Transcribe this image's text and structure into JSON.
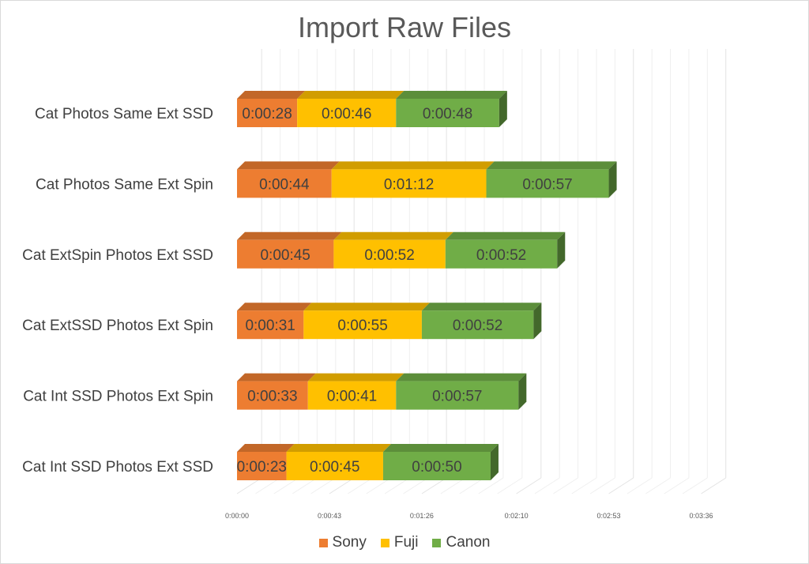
{
  "chart_data": {
    "type": "bar",
    "orientation": "horizontal",
    "stacked": true,
    "style": "3d",
    "title": "Import Raw Files",
    "categories": [
      "Cat Photos Same Ext SSD",
      "Cat Photos Same Ext Spin",
      "Cat ExtSpin Photos Ext SSD",
      "Cat ExtSSD Photos Ext Spin",
      "Cat Int SSD Photos Ext Spin",
      "Cat Int SSD Photos Ext SSD"
    ],
    "series": [
      {
        "name": "Sony",
        "color": "#ED7D31",
        "values": [
          28,
          44,
          45,
          31,
          33,
          23
        ],
        "labels": [
          "0:00:28",
          "0:00:44",
          "0:00:45",
          "0:00:31",
          "0:00:33",
          "0:00:23"
        ]
      },
      {
        "name": "Fuji",
        "color": "#FFC000",
        "values": [
          46,
          72,
          52,
          55,
          41,
          45
        ],
        "labels": [
          "0:00:46",
          "0:01:12",
          "0:00:52",
          "0:00:55",
          "0:00:41",
          "0:00:45"
        ]
      },
      {
        "name": "Canon",
        "color": "#70AD47",
        "values": [
          48,
          57,
          52,
          52,
          57,
          50
        ],
        "labels": [
          "0:00:48",
          "0:00:57",
          "0:00:52",
          "0:00:52",
          "0:00:57",
          "0:00:50"
        ]
      }
    ],
    "x_ticks": [
      0,
      43,
      86,
      130,
      173,
      216
    ],
    "x_tick_labels": [
      "0:00:00",
      "0:00:43",
      "0:01:26",
      "0:02:10",
      "0:02:53",
      "0:03:36"
    ],
    "xlim": [
      0,
      216
    ],
    "grid": true,
    "legend_position": "bottom"
  }
}
